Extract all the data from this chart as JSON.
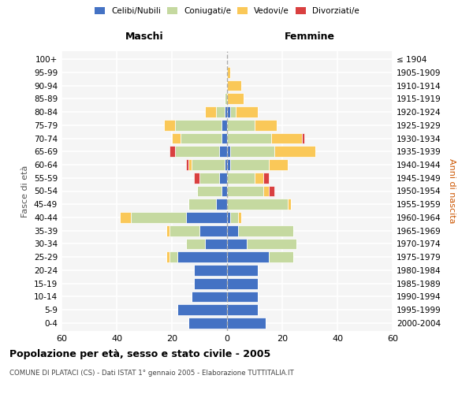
{
  "age_groups": [
    "0-4",
    "5-9",
    "10-14",
    "15-19",
    "20-24",
    "25-29",
    "30-34",
    "35-39",
    "40-44",
    "45-49",
    "50-54",
    "55-59",
    "60-64",
    "65-69",
    "70-74",
    "75-79",
    "80-84",
    "85-89",
    "90-94",
    "95-99",
    "100+"
  ],
  "birth_years": [
    "2000-2004",
    "1995-1999",
    "1990-1994",
    "1985-1989",
    "1980-1984",
    "1975-1979",
    "1970-1974",
    "1965-1969",
    "1960-1964",
    "1955-1959",
    "1950-1954",
    "1945-1949",
    "1940-1944",
    "1935-1939",
    "1930-1934",
    "1925-1929",
    "1920-1924",
    "1915-1919",
    "1910-1914",
    "1905-1909",
    "≤ 1904"
  ],
  "maschi": {
    "celibi": [
      14,
      18,
      13,
      12,
      12,
      18,
      8,
      10,
      15,
      4,
      2,
      3,
      1,
      3,
      2,
      2,
      1,
      0,
      0,
      0,
      0
    ],
    "coniugati": [
      0,
      0,
      0,
      0,
      0,
      3,
      7,
      11,
      20,
      10,
      9,
      7,
      12,
      16,
      15,
      17,
      3,
      1,
      0,
      0,
      0
    ],
    "vedovi": [
      0,
      0,
      0,
      0,
      0,
      1,
      0,
      1,
      4,
      0,
      0,
      0,
      1,
      0,
      3,
      4,
      4,
      0,
      0,
      0,
      0
    ],
    "divorziati": [
      0,
      0,
      0,
      0,
      0,
      0,
      0,
      0,
      0,
      0,
      0,
      2,
      1,
      2,
      0,
      0,
      0,
      0,
      0,
      0,
      0
    ]
  },
  "femmine": {
    "nubili": [
      14,
      11,
      11,
      11,
      11,
      15,
      7,
      4,
      1,
      0,
      0,
      0,
      1,
      1,
      0,
      0,
      1,
      0,
      0,
      0,
      0
    ],
    "coniugate": [
      0,
      0,
      0,
      0,
      0,
      9,
      18,
      20,
      3,
      22,
      13,
      10,
      14,
      16,
      16,
      10,
      2,
      0,
      0,
      0,
      0
    ],
    "vedove": [
      0,
      0,
      0,
      0,
      0,
      0,
      0,
      0,
      1,
      1,
      2,
      3,
      7,
      15,
      11,
      8,
      8,
      6,
      5,
      1,
      0
    ],
    "divorziate": [
      0,
      0,
      0,
      0,
      0,
      0,
      0,
      0,
      0,
      0,
      2,
      2,
      0,
      0,
      1,
      0,
      0,
      0,
      0,
      0,
      0
    ]
  },
  "colors": {
    "celibi": "#4472c4",
    "coniugati": "#c5d9a0",
    "vedovi": "#fac858",
    "divorziati": "#d94040"
  },
  "xlim": 60,
  "title": "Popolazione per età, sesso e stato civile - 2005",
  "subtitle": "COMUNE DI PLATACI (CS) - Dati ISTAT 1° gennaio 2005 - Elaborazione TUTTITALIA.IT",
  "ylabel_left": "Fasce di età",
  "ylabel_right": "Anni di nascita",
  "xlabel_left": "Maschi",
  "xlabel_right": "Femmine"
}
